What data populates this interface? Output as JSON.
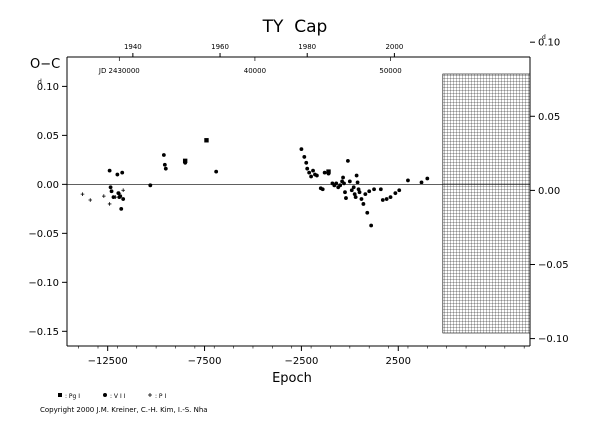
{
  "chart_data": {
    "type": "scatter",
    "title": "TY  Cap",
    "ylabel": "O−C",
    "xlabel": "Epoch",
    "xlim": [
      -14600,
      9300
    ],
    "ylim": [
      -0.165,
      0.13
    ],
    "right_ylim": [
      -0.105,
      0.09
    ],
    "x_ticks": [
      -12500,
      -7500,
      -2500,
      2500
    ],
    "x_tick_labels": [
      "−12500",
      "−7500",
      "−2500",
      "2500"
    ],
    "y_ticks": [
      0.1,
      0.05,
      0.0,
      -0.05,
      -0.1,
      -0.15
    ],
    "y_tick_labels": [
      "0.10",
      "0.05",
      "0.00",
      "−0.05",
      "−0.10",
      "−0.15"
    ],
    "y_tick_sup": "d",
    "right_ticks": [
      0.1,
      0.05,
      0.0,
      -0.05,
      -0.1
    ],
    "right_tick_labels": [
      "0.10",
      "0.05",
      "0.00",
      "−0.05",
      "−0.10"
    ],
    "top_year_ticks": [
      1940,
      1960,
      1980,
      2000
    ],
    "top_year_x": [
      -11200,
      -6700,
      -2200,
      2300
    ],
    "jd_labels": [
      {
        "label": "JD 2430000",
        "x": -11900
      },
      {
        "label": "40000",
        "x": -4900
      },
      {
        "label": "50000",
        "x": 2100
      }
    ],
    "hatched_x_from": 4800,
    "zero_line": true,
    "legend": [
      {
        "marker": "square",
        "label": ": Pg I"
      },
      {
        "marker": "circle",
        "label": ": V I I"
      },
      {
        "marker": "plus",
        "label": ": P I"
      }
    ],
    "series": [
      {
        "marker": "plus",
        "points": [
          [
            -13800,
            -0.01
          ],
          [
            -13400,
            -0.016
          ],
          [
            -12700,
            -0.012
          ],
          [
            -12400,
            -0.02
          ],
          [
            -12100,
            -0.013
          ],
          [
            -11900,
            -0.009
          ],
          [
            -11700,
            -0.006
          ]
        ]
      },
      {
        "marker": "circle",
        "points": [
          [
            -12400,
            0.014
          ],
          [
            -12350,
            -0.003
          ],
          [
            -12300,
            -0.007
          ],
          [
            -12200,
            -0.013
          ],
          [
            -12000,
            0.01
          ],
          [
            -11950,
            -0.009
          ],
          [
            -11900,
            -0.013
          ],
          [
            -11850,
            -0.012
          ],
          [
            -11800,
            -0.025
          ],
          [
            -11750,
            0.012
          ],
          [
            -11700,
            -0.015
          ],
          [
            -10300,
            -0.001
          ],
          [
            -9600,
            0.03
          ],
          [
            -9550,
            0.02
          ],
          [
            -9500,
            0.016
          ],
          [
            -8500,
            0.022
          ],
          [
            -6900,
            0.013
          ],
          [
            -2500,
            0.036
          ],
          [
            -2350,
            0.028
          ],
          [
            -2250,
            0.022
          ],
          [
            -2200,
            0.016
          ],
          [
            -2100,
            0.012
          ],
          [
            -2000,
            0.008
          ],
          [
            -1900,
            0.014
          ],
          [
            -1800,
            0.01
          ],
          [
            -1700,
            0.009
          ],
          [
            -1500,
            -0.004
          ],
          [
            -1400,
            -0.005
          ],
          [
            -1300,
            0.012
          ],
          [
            -1100,
            0.011
          ],
          [
            -900,
            0.001
          ],
          [
            -800,
            -0.001
          ],
          [
            -700,
            0.001
          ],
          [
            -600,
            -0.003
          ],
          [
            -500,
            -0.001
          ],
          [
            -400,
            0.003
          ],
          [
            -350,
            0.007
          ],
          [
            -300,
            0.001
          ],
          [
            -250,
            -0.008
          ],
          [
            -200,
            -0.014
          ],
          [
            -100,
            0.024
          ],
          [
            0,
            0.003
          ],
          [
            100,
            -0.006
          ],
          [
            200,
            -0.003
          ],
          [
            250,
            -0.01
          ],
          [
            300,
            -0.013
          ],
          [
            350,
            0.009
          ],
          [
            400,
            0.002
          ],
          [
            450,
            -0.005
          ],
          [
            500,
            -0.008
          ],
          [
            600,
            -0.015
          ],
          [
            700,
            -0.02
          ],
          [
            800,
            -0.01
          ],
          [
            900,
            -0.029
          ],
          [
            1000,
            -0.007
          ],
          [
            1100,
            -0.042
          ],
          [
            1250,
            -0.005
          ],
          [
            1600,
            -0.005
          ],
          [
            1700,
            -0.016
          ],
          [
            1900,
            -0.015
          ],
          [
            2100,
            -0.013
          ],
          [
            2350,
            -0.009
          ],
          [
            2550,
            -0.006
          ],
          [
            3000,
            0.004
          ],
          [
            3700,
            0.002
          ],
          [
            4000,
            0.006
          ]
        ]
      },
      {
        "marker": "square",
        "points": [
          [
            -7400,
            0.045
          ],
          [
            -8500,
            0.024
          ],
          [
            -1100,
            0.013
          ]
        ]
      }
    ]
  },
  "copyright": "Copyright 2000 J.M. Kreiner, C.-H. Kim, I.-S. Nha"
}
